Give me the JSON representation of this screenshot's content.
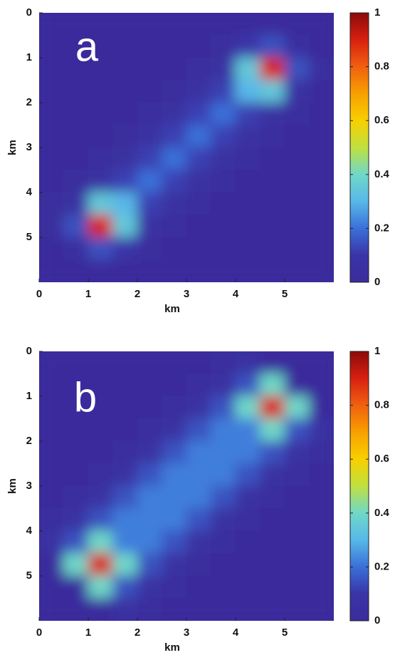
{
  "chart_data": [
    {
      "type": "heatmap",
      "title": "a",
      "xlabel": "km",
      "ylabel": "km",
      "x": [
        0.25,
        0.75,
        1.25,
        1.75,
        2.25,
        2.75,
        3.25,
        3.75,
        4.25,
        4.75,
        5.25,
        5.75
      ],
      "y": [
        0.25,
        0.75,
        1.25,
        1.75,
        2.25,
        2.75,
        3.25,
        3.75,
        4.25,
        4.75,
        5.25,
        5.75
      ],
      "z": [
        [
          0,
          0,
          0,
          0,
          0,
          0,
          0,
          0,
          0,
          0,
          0,
          0
        ],
        [
          0,
          0,
          0,
          0,
          0,
          0,
          0,
          0.02,
          0.1,
          0.15,
          0.03,
          0
        ],
        [
          0,
          0,
          0,
          0,
          0,
          0,
          0.02,
          0.05,
          0.35,
          0.9,
          0.15,
          0.02
        ],
        [
          0,
          0,
          0,
          0,
          0,
          0.02,
          0.05,
          0.12,
          0.3,
          0.35,
          0.05,
          0
        ],
        [
          0,
          0,
          0,
          0,
          0.02,
          0.05,
          0.12,
          0.2,
          0.12,
          0.05,
          0.02,
          0
        ],
        [
          0,
          0,
          0,
          0.02,
          0.05,
          0.12,
          0.2,
          0.12,
          0.05,
          0.02,
          0,
          0
        ],
        [
          0,
          0,
          0.02,
          0.05,
          0.12,
          0.2,
          0.12,
          0.05,
          0.02,
          0,
          0,
          0
        ],
        [
          0,
          0.02,
          0.05,
          0.12,
          0.2,
          0.12,
          0.05,
          0.02,
          0,
          0,
          0,
          0
        ],
        [
          0.02,
          0.05,
          0.35,
          0.3,
          0.12,
          0.05,
          0.02,
          0,
          0,
          0,
          0,
          0
        ],
        [
          0.02,
          0.15,
          0.9,
          0.35,
          0.05,
          0.02,
          0,
          0,
          0,
          0,
          0,
          0
        ],
        [
          0,
          0.03,
          0.15,
          0.1,
          0.02,
          0,
          0,
          0,
          0,
          0,
          0,
          0
        ],
        [
          0,
          0,
          0,
          0,
          0,
          0,
          0,
          0,
          0,
          0,
          0,
          0
        ]
      ],
      "xlim": [
        0,
        6
      ],
      "ylim": [
        6,
        0
      ],
      "xticks": [
        0,
        1,
        2,
        3,
        4,
        5
      ],
      "yticks": [
        0,
        1,
        2,
        3,
        4,
        5
      ],
      "zlim": [
        0,
        1
      ],
      "zticks": [
        0,
        0.2,
        0.4,
        0.6,
        0.8,
        1
      ],
      "colormap": [
        "#3b2c9c",
        "#3a34a8",
        "#3a70d8",
        "#58b8e8",
        "#70d8c8",
        "#c0e040",
        "#f8d000",
        "#f8a000",
        "#f06010",
        "#d82010",
        "#8c0a0a"
      ]
    },
    {
      "type": "heatmap",
      "title": "b",
      "xlabel": "km",
      "ylabel": "km",
      "x": [
        0.25,
        0.75,
        1.25,
        1.75,
        2.25,
        2.75,
        3.25,
        3.75,
        4.25,
        4.75,
        5.25,
        5.75
      ],
      "y": [
        0.25,
        0.75,
        1.25,
        1.75,
        2.25,
        2.75,
        3.25,
        3.75,
        4.25,
        4.75,
        5.25,
        5.75
      ],
      "z": [
        [
          0,
          0,
          0,
          0,
          0,
          0,
          0,
          0.02,
          0.06,
          0,
          0,
          0
        ],
        [
          0,
          0,
          0,
          0,
          0,
          0,
          0.02,
          0.06,
          0.15,
          0.4,
          0,
          0
        ],
        [
          0,
          0,
          0,
          0,
          0,
          0.02,
          0.06,
          0.15,
          0.4,
          0.9,
          0.4,
          0
        ],
        [
          0,
          0,
          0,
          0,
          0.02,
          0.06,
          0.15,
          0.22,
          0.22,
          0.4,
          0.15,
          0.06
        ],
        [
          0,
          0,
          0,
          0.02,
          0.06,
          0.15,
          0.22,
          0.22,
          0.22,
          0.15,
          0.06,
          0.02
        ],
        [
          0,
          0,
          0.02,
          0.06,
          0.15,
          0.22,
          0.22,
          0.22,
          0.15,
          0.06,
          0.02,
          0
        ],
        [
          0,
          0.02,
          0.06,
          0.15,
          0.22,
          0.22,
          0.22,
          0.15,
          0.06,
          0.02,
          0,
          0
        ],
        [
          0.02,
          0.06,
          0.15,
          0.22,
          0.22,
          0.22,
          0.15,
          0.06,
          0.02,
          0,
          0,
          0
        ],
        [
          0.06,
          0.15,
          0.4,
          0.22,
          0.22,
          0.15,
          0.06,
          0.02,
          0,
          0,
          0,
          0
        ],
        [
          0,
          0.4,
          0.9,
          0.4,
          0.15,
          0.06,
          0.02,
          0,
          0,
          0,
          0,
          0
        ],
        [
          0,
          0,
          0.4,
          0.15,
          0.06,
          0.02,
          0,
          0,
          0,
          0,
          0,
          0
        ],
        [
          0,
          0,
          0,
          0.06,
          0.02,
          0,
          0,
          0,
          0,
          0,
          0,
          0
        ]
      ],
      "xlim": [
        0,
        6
      ],
      "ylim": [
        6,
        0
      ],
      "xticks": [
        0,
        1,
        2,
        3,
        4,
        5
      ],
      "yticks": [
        0,
        1,
        2,
        3,
        4,
        5
      ],
      "zlim": [
        0,
        1
      ],
      "zticks": [
        0,
        0.2,
        0.4,
        0.6,
        0.8,
        1
      ],
      "colormap": [
        "#3b2c9c",
        "#3a34a8",
        "#3a70d8",
        "#58b8e8",
        "#70d8c8",
        "#c0e040",
        "#f8d000",
        "#f8a000",
        "#f06010",
        "#d82010",
        "#8c0a0a"
      ]
    }
  ]
}
